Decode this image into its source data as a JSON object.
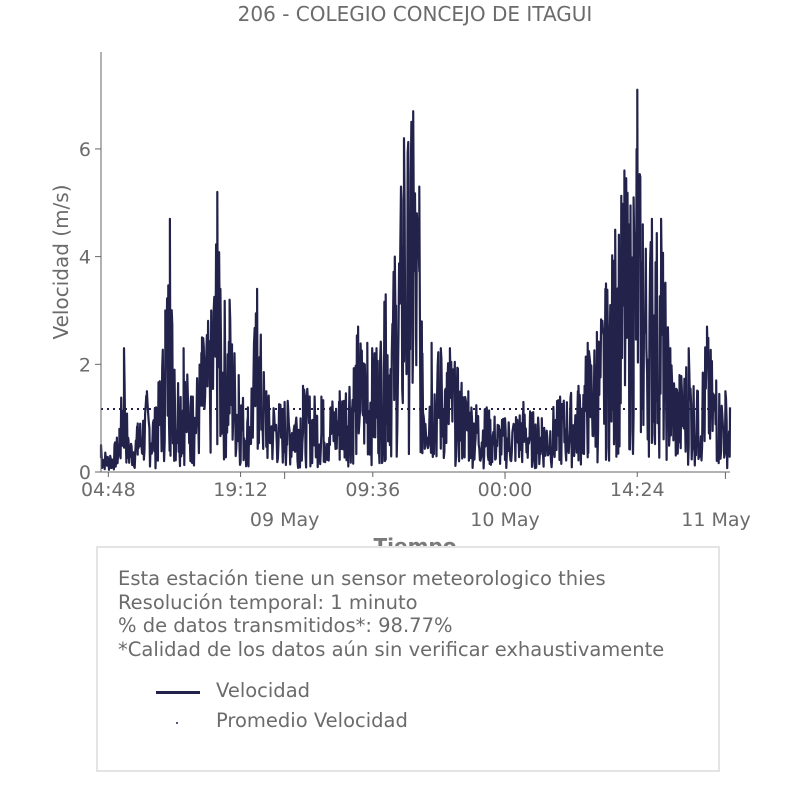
{
  "chart_data": {
    "type": "line",
    "title": "206 - COLEGIO CONCEJO DE ITAGUI",
    "xlabel": "Tiempo",
    "ylabel": "Velocidad (m/s)",
    "ylim": [
      0,
      7.8
    ],
    "yticks": [
      "0",
      "2",
      "4",
      "6"
    ],
    "x_tick_labels": [
      "04:48",
      "19:12",
      "09:36",
      "00:00",
      "14:24"
    ],
    "x_date_labels": [
      "09 May",
      "10 May",
      "11 May"
    ],
    "x_range": [
      "2020-05-08 04:00",
      "2020-05-11 00:30"
    ],
    "series": [
      {
        "name": "Velocidad",
        "color": "#22224a",
        "points": [
          [
            "2020-05-08 04:00",
            0.5
          ],
          [
            "2020-05-08 05:00",
            0.3
          ],
          [
            "2020-05-08 06:00",
            0.8
          ],
          [
            "2020-05-08 06:30",
            2.3
          ],
          [
            "2020-05-08 07:00",
            0.6
          ],
          [
            "2020-05-08 08:00",
            0.9
          ],
          [
            "2020-05-08 09:00",
            1.5
          ],
          [
            "2020-05-08 10:00",
            1.2
          ],
          [
            "2020-05-08 11:00",
            3.0
          ],
          [
            "2020-05-08 11:30",
            4.7
          ],
          [
            "2020-05-08 12:00",
            1.9
          ],
          [
            "2020-05-08 13:00",
            2.3
          ],
          [
            "2020-05-08 14:00",
            1.4
          ],
          [
            "2020-05-08 15:00",
            2.5
          ],
          [
            "2020-05-08 16:00",
            3.0
          ],
          [
            "2020-05-08 16:40",
            5.2
          ],
          [
            "2020-05-08 17:00",
            3.4
          ],
          [
            "2020-05-08 18:00",
            3.2
          ],
          [
            "2020-05-08 19:00",
            1.8
          ],
          [
            "2020-05-08 20:00",
            1.2
          ],
          [
            "2020-05-08 21:00",
            3.4
          ],
          [
            "2020-05-08 22:00",
            1.5
          ],
          [
            "2020-05-09 00:00",
            1.3
          ],
          [
            "2020-05-09 02:00",
            1.6
          ],
          [
            "2020-05-09 04:00",
            1.4
          ],
          [
            "2020-05-09 06:00",
            1.5
          ],
          [
            "2020-05-09 08:00",
            2.7
          ],
          [
            "2020-05-09 09:00",
            2.4
          ],
          [
            "2020-05-09 10:00",
            2.3
          ],
          [
            "2020-05-09 11:00",
            3.3
          ],
          [
            "2020-05-09 12:00",
            4.0
          ],
          [
            "2020-05-09 13:00",
            6.2
          ],
          [
            "2020-05-09 14:00",
            6.7
          ],
          [
            "2020-05-09 14:40",
            5.3
          ],
          [
            "2020-05-09 15:00",
            2.2
          ],
          [
            "2020-05-09 16:00",
            2.4
          ],
          [
            "2020-05-09 17:00",
            2.3
          ],
          [
            "2020-05-09 18:00",
            2.3
          ],
          [
            "2020-05-09 20:00",
            1.5
          ],
          [
            "2020-05-09 22:00",
            1.2
          ],
          [
            "2020-05-10 00:00",
            1.0
          ],
          [
            "2020-05-10 02:00",
            1.3
          ],
          [
            "2020-05-10 04:00",
            1.0
          ],
          [
            "2020-05-10 06:00",
            1.4
          ],
          [
            "2020-05-10 08:00",
            1.6
          ],
          [
            "2020-05-10 09:00",
            2.4
          ],
          [
            "2020-05-10 10:00",
            2.6
          ],
          [
            "2020-05-10 11:00",
            3.5
          ],
          [
            "2020-05-10 12:00",
            4.5
          ],
          [
            "2020-05-10 13:00",
            5.6
          ],
          [
            "2020-05-10 14:00",
            5.1
          ],
          [
            "2020-05-10 14:24",
            7.1
          ],
          [
            "2020-05-10 15:00",
            4.6
          ],
          [
            "2020-05-10 16:00",
            4.7
          ],
          [
            "2020-05-10 17:00",
            4.7
          ],
          [
            "2020-05-10 18:00",
            2.3
          ],
          [
            "2020-05-10 19:00",
            1.8
          ],
          [
            "2020-05-10 20:00",
            2.3
          ],
          [
            "2020-05-10 21:00",
            1.5
          ],
          [
            "2020-05-10 22:00",
            2.7
          ],
          [
            "2020-05-10 23:00",
            1.7
          ],
          [
            "2020-05-11 00:00",
            1.5
          ],
          [
            "2020-05-11 00:30",
            1.2
          ]
        ]
      },
      {
        "name": "Promedio Velocidad",
        "color": "#22224a",
        "style": "dotted",
        "value": 1.17
      }
    ],
    "grid": false
  },
  "info": {
    "line1": "Esta estación tiene un sensor meteorologico thies",
    "line2": "Resolución temporal: 1 minuto",
    "line3": "% de datos transmitidos*: 98.77%",
    "line4": "*Calidad de los datos aún sin verificar exhaustivamente"
  },
  "legend": {
    "velocidad": "Velocidad",
    "promedio": "Promedio Velocidad"
  }
}
